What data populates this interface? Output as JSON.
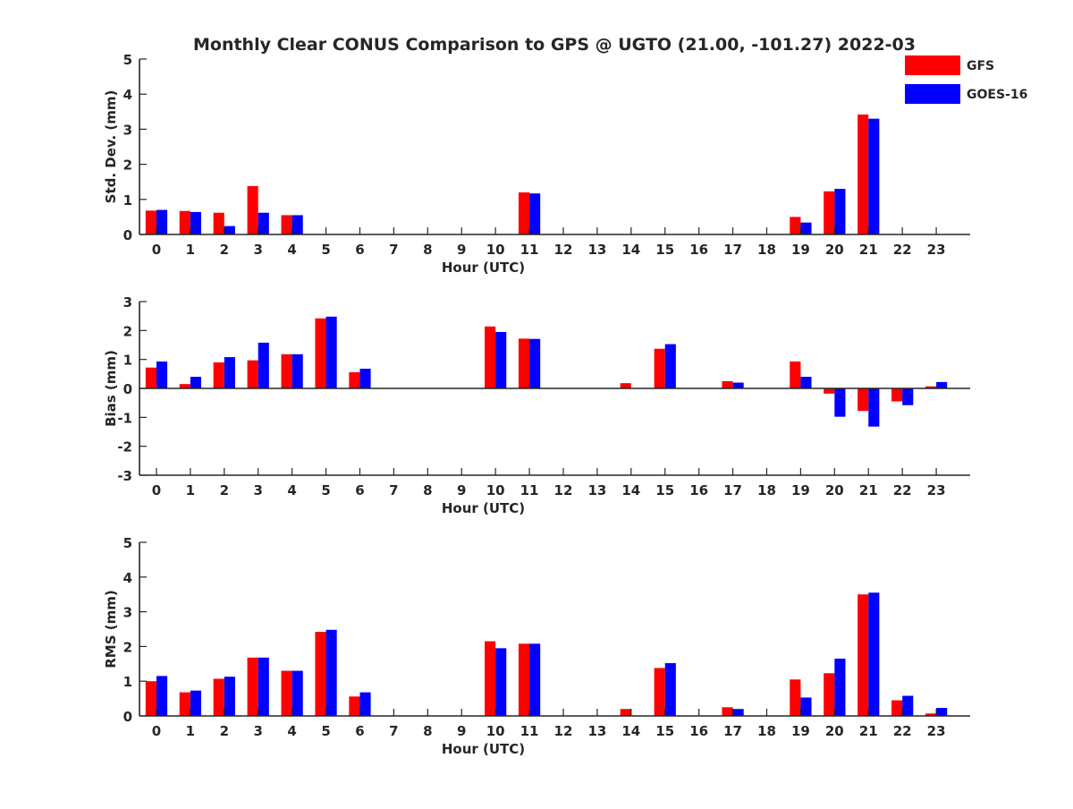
{
  "chart_data": {
    "title": "Monthly Clear CONUS Comparison to GPS @ UGTO (21.00, -101.27) 2022-03",
    "legend": {
      "position": "top-right",
      "entries": [
        {
          "name": "GFS",
          "color": "#ff0000"
        },
        {
          "name": "GOES-16",
          "color": "#0000ff"
        }
      ]
    },
    "hours": [
      "0",
      "1",
      "2",
      "3",
      "4",
      "5",
      "6",
      "7",
      "8",
      "9",
      "10",
      "11",
      "12",
      "13",
      "14",
      "15",
      "16",
      "17",
      "18",
      "19",
      "20",
      "21",
      "22",
      "23"
    ],
    "panels": [
      {
        "type": "bar",
        "ylabel": "Std. Dev. (mm)",
        "xlabel": "Hour (UTC)",
        "ylim": [
          0,
          5
        ],
        "yticks": [
          0,
          1,
          2,
          3,
          4,
          5
        ],
        "series": [
          {
            "name": "GFS",
            "values": [
              0.68,
              0.67,
              0.62,
              1.38,
              0.55,
              null,
              null,
              null,
              null,
              null,
              null,
              1.2,
              null,
              null,
              null,
              null,
              null,
              null,
              null,
              0.5,
              1.23,
              3.42,
              null,
              null
            ]
          },
          {
            "name": "GOES-16",
            "values": [
              0.7,
              0.64,
              0.24,
              0.62,
              0.55,
              null,
              null,
              null,
              null,
              null,
              null,
              1.17,
              null,
              null,
              null,
              null,
              null,
              null,
              null,
              0.34,
              1.3,
              3.3,
              null,
              null
            ]
          }
        ]
      },
      {
        "type": "bar",
        "ylabel": "Bias (mm)",
        "xlabel": "Hour (UTC)",
        "ylim": [
          -3,
          3
        ],
        "yticks": [
          -3,
          -2,
          -1,
          0,
          1,
          2,
          3
        ],
        "series": [
          {
            "name": "GFS",
            "values": [
              0.72,
              0.15,
              0.9,
              0.97,
              1.18,
              2.42,
              0.56,
              null,
              null,
              null,
              2.14,
              1.72,
              null,
              null,
              0.18,
              1.37,
              null,
              0.25,
              null,
              0.93,
              -0.18,
              -0.78,
              -0.45,
              0.07
            ]
          },
          {
            "name": "GOES-16",
            "values": [
              0.93,
              0.4,
              1.08,
              1.58,
              1.18,
              2.48,
              0.68,
              null,
              null,
              null,
              1.95,
              1.71,
              null,
              null,
              null,
              1.53,
              null,
              0.2,
              null,
              0.4,
              -0.98,
              -1.32,
              -0.58,
              0.22
            ]
          }
        ]
      },
      {
        "type": "bar",
        "ylabel": "RMS (mm)",
        "xlabel": "Hour (UTC)",
        "ylim": [
          0,
          5
        ],
        "yticks": [
          0,
          1,
          2,
          3,
          4,
          5
        ],
        "series": [
          {
            "name": "GFS",
            "values": [
              1.0,
              0.68,
              1.07,
              1.68,
              1.3,
              2.42,
              0.56,
              null,
              null,
              null,
              2.15,
              2.08,
              null,
              null,
              0.2,
              1.38,
              null,
              0.25,
              null,
              1.05,
              1.23,
              3.5,
              0.45,
              0.07
            ]
          },
          {
            "name": "GOES-16",
            "values": [
              1.15,
              0.73,
              1.13,
              1.68,
              1.3,
              2.48,
              0.68,
              null,
              null,
              null,
              1.95,
              2.08,
              null,
              null,
              null,
              1.52,
              null,
              0.2,
              null,
              0.53,
              1.65,
              3.55,
              0.58,
              0.23
            ]
          }
        ]
      }
    ]
  }
}
